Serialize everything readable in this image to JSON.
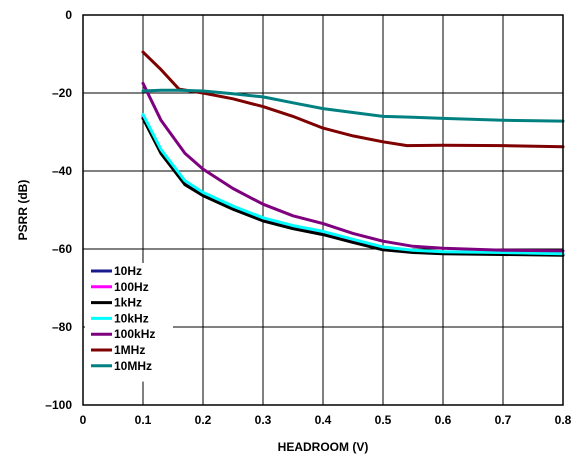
{
  "chart_data": {
    "type": "line",
    "title": "",
    "xlabel": "HEADROOM (V)",
    "ylabel": "PSRR (dB)",
    "xlim": [
      0,
      0.8
    ],
    "ylim": [
      -100,
      0
    ],
    "xticks": [
      0,
      0.1,
      0.2,
      0.3,
      0.4,
      0.5,
      0.6,
      0.7,
      0.8
    ],
    "xtick_labels": [
      "0",
      "0.1",
      "0.2",
      "0.3",
      "0.4",
      "0.5",
      "0.6",
      "0.7",
      "0.8"
    ],
    "yticks": [
      0,
      -20,
      -40,
      -60,
      -80,
      -100
    ],
    "ytick_labels": [
      "0",
      "–20",
      "–40",
      "–60",
      "–80",
      "–100"
    ],
    "grid": true,
    "legend_position": "bottom-left",
    "series": [
      {
        "name": "10Hz",
        "color": "#1a1a8c",
        "x": [
          0.1,
          0.13,
          0.17,
          0.2,
          0.25,
          0.3,
          0.35,
          0.4,
          0.45,
          0.5,
          0.55,
          0.6,
          0.7,
          0.8
        ],
        "y": [
          -26,
          -35,
          -43,
          -46,
          -49.5,
          -52.5,
          -54.5,
          -56,
          -58,
          -60,
          -60.7,
          -61,
          -61.2,
          -61.5
        ]
      },
      {
        "name": "100Hz",
        "color": "#ff00ff",
        "x": [
          0.1,
          0.13,
          0.17,
          0.2,
          0.25,
          0.3,
          0.35,
          0.4,
          0.45,
          0.5,
          0.55,
          0.6,
          0.7,
          0.8
        ],
        "y": [
          -26,
          -35,
          -43,
          -46,
          -49.3,
          -52.3,
          -54.3,
          -55.8,
          -57.8,
          -59.8,
          -60.5,
          -60.8,
          -61,
          -61.3
        ]
      },
      {
        "name": "1kHz",
        "color": "#000000",
        "x": [
          0.1,
          0.13,
          0.17,
          0.2,
          0.25,
          0.3,
          0.35,
          0.4,
          0.45,
          0.5,
          0.55,
          0.6,
          0.7,
          0.8
        ],
        "y": [
          -26.5,
          -35.5,
          -43.5,
          -46.3,
          -49.8,
          -52.8,
          -54.8,
          -56.3,
          -58.3,
          -60.2,
          -60.9,
          -61.2,
          -61.4,
          -61.6
        ]
      },
      {
        "name": "10kHz",
        "color": "#00ffff",
        "x": [
          0.1,
          0.13,
          0.17,
          0.2,
          0.25,
          0.3,
          0.35,
          0.4,
          0.45,
          0.5,
          0.55,
          0.6,
          0.7,
          0.8
        ],
        "y": [
          -25.5,
          -34.5,
          -42.5,
          -45.5,
          -49,
          -52,
          -54,
          -55.5,
          -57.5,
          -59.5,
          -60.3,
          -60.7,
          -60.9,
          -61.2
        ]
      },
      {
        "name": "100kHz",
        "color": "#7f007f",
        "x": [
          0.1,
          0.13,
          0.17,
          0.2,
          0.25,
          0.3,
          0.35,
          0.4,
          0.45,
          0.5,
          0.55,
          0.6,
          0.7,
          0.8
        ],
        "y": [
          -17.5,
          -27,
          -35.5,
          -39.5,
          -44.5,
          -48.5,
          -51.5,
          -53.5,
          -56,
          -58,
          -59.3,
          -59.8,
          -60.3,
          -60.5
        ]
      },
      {
        "name": "1MHz",
        "color": "#7f0000",
        "x": [
          0.1,
          0.13,
          0.16,
          0.2,
          0.25,
          0.3,
          0.35,
          0.4,
          0.45,
          0.5,
          0.54,
          0.6,
          0.7,
          0.8
        ],
        "y": [
          -9.5,
          -14,
          -19,
          -20,
          -21.5,
          -23.5,
          -26,
          -29,
          -31,
          -32.5,
          -33.5,
          -33.4,
          -33.5,
          -33.8
        ]
      },
      {
        "name": "10MHz",
        "color": "#008080",
        "x": [
          0.1,
          0.13,
          0.16,
          0.2,
          0.25,
          0.3,
          0.35,
          0.4,
          0.45,
          0.5,
          0.55,
          0.6,
          0.7,
          0.8
        ],
        "y": [
          -19.5,
          -19.3,
          -19.3,
          -19.5,
          -20.2,
          -21,
          -22.5,
          -24,
          -25,
          -26,
          -26.2,
          -26.5,
          -27,
          -27.2
        ]
      }
    ]
  }
}
